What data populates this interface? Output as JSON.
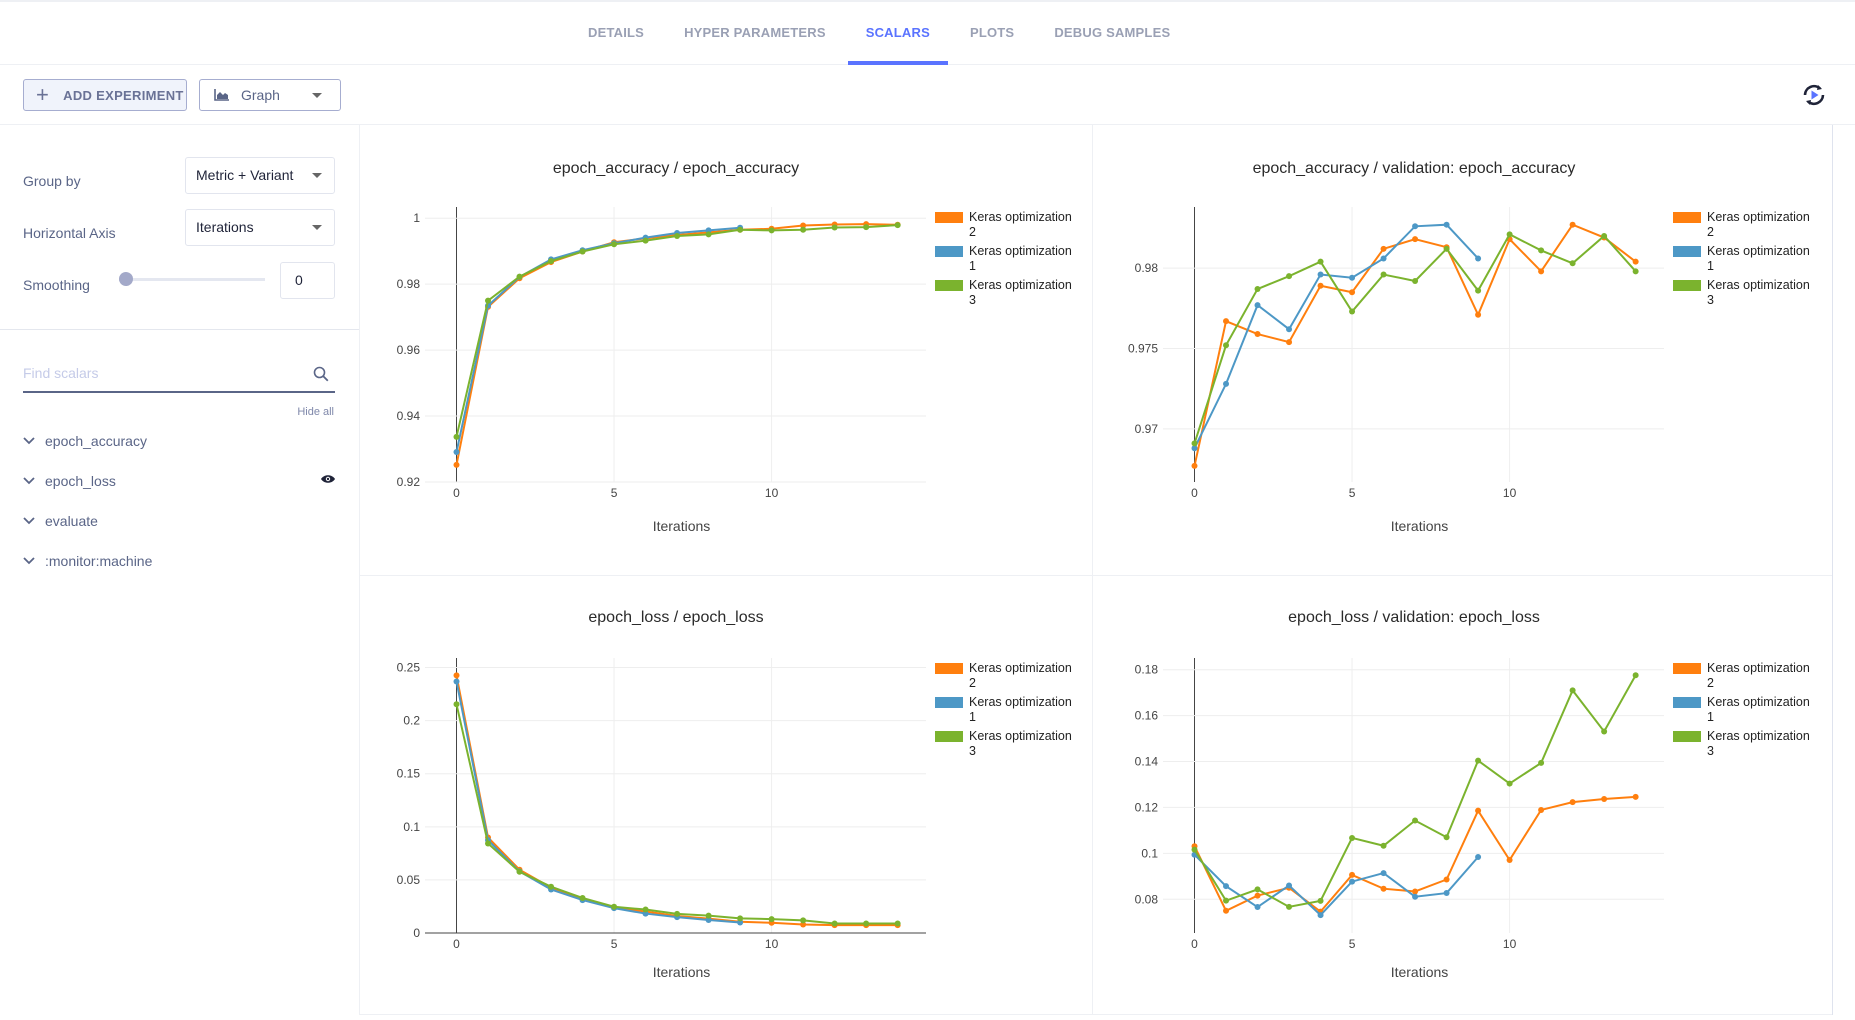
{
  "tabs": [
    {
      "label": "DETAILS",
      "active": false
    },
    {
      "label": "HYPER PARAMETERS",
      "active": false
    },
    {
      "label": "SCALARS",
      "active": true
    },
    {
      "label": "PLOTS",
      "active": false
    },
    {
      "label": "DEBUG SAMPLES",
      "active": false
    }
  ],
  "toolbar": {
    "add_experiment_label": "ADD EXPERIMENT",
    "view_select_value": "Graph",
    "refresh_icon": "auto-refresh-icon"
  },
  "settings": {
    "group_by_label": "Group by",
    "group_by_value": "Metric + Variant",
    "horizontal_axis_label": "Horizontal Axis",
    "horizontal_axis_value": "Iterations",
    "smoothing_label": "Smoothing",
    "smoothing_value": "0"
  },
  "search": {
    "placeholder": "Find scalars"
  },
  "hide_all_label": "Hide all",
  "metrics": [
    {
      "label": "epoch_accuracy",
      "visible_icon": false
    },
    {
      "label": "epoch_loss",
      "visible_icon": true
    },
    {
      "label": "evaluate",
      "visible_icon": false
    },
    {
      "label": ":monitor:machine",
      "visible_icon": false
    }
  ],
  "colors": {
    "accent": "#5a73ff",
    "series_orange": "#ff7f0e",
    "series_blue": "#4d98c6",
    "series_green": "#7bb32e"
  },
  "chart_data": [
    {
      "type": "line",
      "title": "epoch_accuracy / epoch_accuracy",
      "xlabel": "Iterations",
      "xlim": [
        -1,
        14.9
      ],
      "ylim": [
        0.92,
        1.0034
      ],
      "xticks": [
        0,
        5,
        10
      ],
      "yticks": [
        0.92,
        0.94,
        0.96,
        0.98,
        1
      ],
      "ytick_labels": [
        "0.92",
        "0.94",
        "0.96",
        "0.98",
        "1"
      ],
      "grid": true,
      "legend": "right",
      "series": [
        {
          "name": "Keras optimization 2",
          "color": "#ff7f0e",
          "y": [
            0.9252,
            0.9731,
            0.9818,
            0.9867,
            0.9899,
            0.9927,
            0.9939,
            0.9949,
            0.9957,
            0.9965,
            0.9968,
            0.9978,
            0.9981,
            0.9982,
            0.998
          ]
        },
        {
          "name": "Keras optimization 1",
          "color": "#4d98c6",
          "y": [
            0.9291,
            0.9735,
            0.9822,
            0.9875,
            0.9903,
            0.9924,
            0.9941,
            0.9955,
            0.9963,
            0.9971
          ]
        },
        {
          "name": "Keras optimization 3",
          "color": "#7bb32e",
          "y": [
            0.9337,
            0.975,
            0.9823,
            0.987,
            0.9899,
            0.9921,
            0.9932,
            0.9946,
            0.9951,
            0.9965,
            0.9963,
            0.9965,
            0.9972,
            0.9973,
            0.9979
          ]
        }
      ]
    },
    {
      "type": "line",
      "title": "epoch_accuracy / validation: epoch_accuracy",
      "xlabel": "Iterations",
      "xlim": [
        -1,
        14.9
      ],
      "ylim": [
        0.9667,
        0.9838
      ],
      "xticks": [
        0,
        5,
        10
      ],
      "yticks": [
        0.97,
        0.975,
        0.98
      ],
      "ytick_labels": [
        "0.97",
        "0.975",
        "0.98"
      ],
      "grid": true,
      "legend": "right",
      "series": [
        {
          "name": "Keras optimization 2",
          "color": "#ff7f0e",
          "y": [
            0.9677,
            0.9767,
            0.9759,
            0.9754,
            0.9789,
            0.9785,
            0.9812,
            0.9818,
            0.9813,
            0.9771,
            0.9818,
            0.9798,
            0.9827,
            0.9819,
            0.9804
          ]
        },
        {
          "name": "Keras optimization 1",
          "color": "#4d98c6",
          "y": [
            0.9688,
            0.9728,
            0.9777,
            0.9762,
            0.9796,
            0.9794,
            0.9806,
            0.9826,
            0.9827,
            0.9806
          ]
        },
        {
          "name": "Keras optimization 3",
          "color": "#7bb32e",
          "y": [
            0.9691,
            0.9752,
            0.9787,
            0.9795,
            0.9804,
            0.9773,
            0.9796,
            0.9792,
            0.9812,
            0.9786,
            0.9821,
            0.9811,
            0.9803,
            0.982,
            0.9798
          ]
        }
      ]
    },
    {
      "type": "line",
      "title": "epoch_loss / epoch_loss",
      "xlabel": "Iterations",
      "xlim": [
        -1,
        14.9
      ],
      "ylim": [
        0,
        0.259
      ],
      "xticks": [
        0,
        5,
        10
      ],
      "yticks": [
        0,
        0.05,
        0.1,
        0.15,
        0.2,
        0.25
      ],
      "ytick_labels": [
        "0",
        "0.05",
        "0.1",
        "0.15",
        "0.2",
        "0.25"
      ],
      "grid": true,
      "legend": "right",
      "series": [
        {
          "name": "Keras optimization 2",
          "color": "#ff7f0e",
          "y": [
            0.2426,
            0.09,
            0.0596,
            0.0427,
            0.032,
            0.024,
            0.0202,
            0.016,
            0.0135,
            0.0106,
            0.0096,
            0.008,
            0.0074,
            0.0074,
            0.0074
          ]
        },
        {
          "name": "Keras optimization 1",
          "color": "#4d98c6",
          "y": [
            0.2369,
            0.0875,
            0.058,
            0.041,
            0.031,
            0.0234,
            0.0183,
            0.015,
            0.0122,
            0.0099
          ]
        },
        {
          "name": "Keras optimization 3",
          "color": "#7bb32e",
          "y": [
            0.2154,
            0.0843,
            0.0577,
            0.0436,
            0.033,
            0.0247,
            0.0221,
            0.018,
            0.0164,
            0.0138,
            0.0131,
            0.0119,
            0.009,
            0.009,
            0.009
          ]
        }
      ]
    },
    {
      "type": "line",
      "title": "epoch_loss / validation: epoch_loss",
      "xlabel": "Iterations",
      "xlim": [
        -1,
        14.9
      ],
      "ylim": [
        0.0653,
        0.1851
      ],
      "xticks": [
        0,
        5,
        10
      ],
      "yticks": [
        0.08,
        0.1,
        0.12,
        0.14,
        0.16,
        0.18
      ],
      "ytick_labels": [
        "0.08",
        "0.1",
        "0.12",
        "0.14",
        "0.16",
        "0.18"
      ],
      "grid": true,
      "legend": "right",
      "series": [
        {
          "name": "Keras optimization 2",
          "color": "#ff7f0e",
          "y": [
            0.1031,
            0.075,
            0.0816,
            0.085,
            0.0746,
            0.0906,
            0.0846,
            0.0834,
            0.0886,
            0.1186,
            0.0971,
            0.1189,
            0.1223,
            0.1237,
            0.1246
          ]
        },
        {
          "name": "Keras optimization 1",
          "color": "#4d98c6",
          "y": [
            0.0994,
            0.0857,
            0.0766,
            0.086,
            0.0731,
            0.0877,
            0.0914,
            0.0811,
            0.0827,
            0.0984
          ]
        },
        {
          "name": "Keras optimization 3",
          "color": "#7bb32e",
          "y": [
            0.1016,
            0.0794,
            0.0843,
            0.0767,
            0.0793,
            0.1067,
            0.1033,
            0.1143,
            0.107,
            0.1404,
            0.1304,
            0.1394,
            0.171,
            0.1531,
            0.1776
          ]
        }
      ]
    }
  ]
}
